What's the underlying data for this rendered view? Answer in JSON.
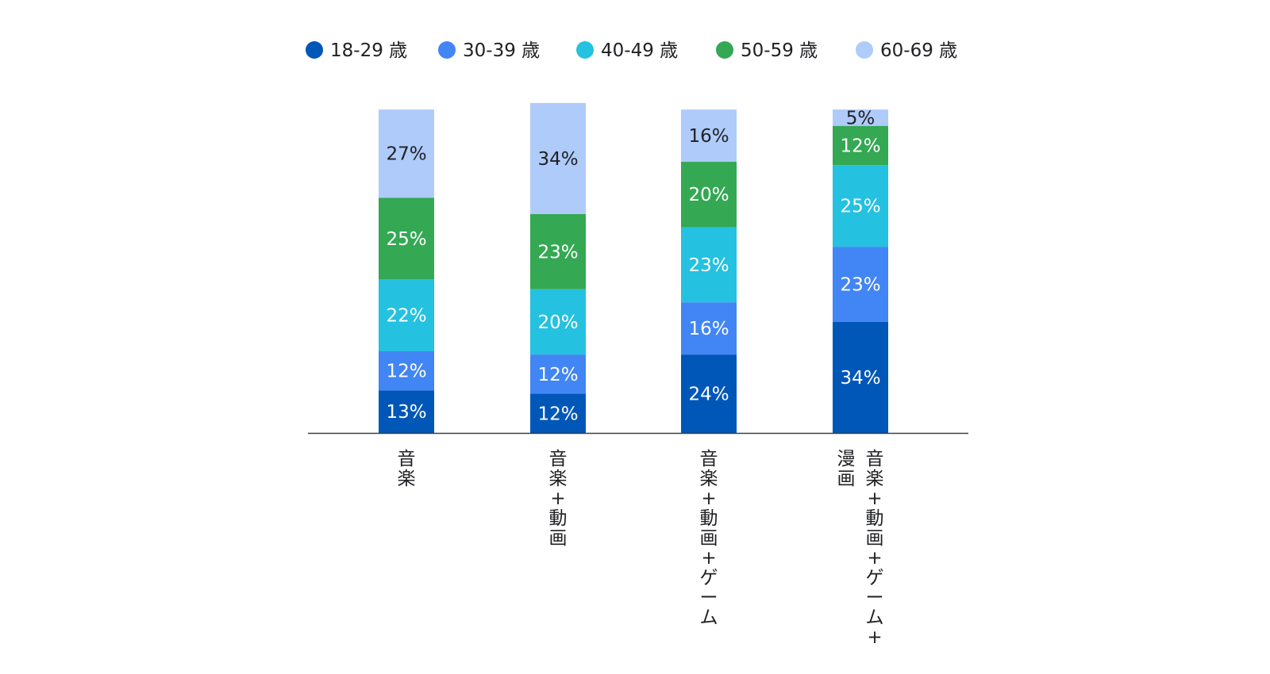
{
  "chart_data": {
    "type": "bar",
    "stacked": true,
    "legend_position": "top",
    "categories": [
      [
        "音楽"
      ],
      [
        "音楽+動画"
      ],
      [
        "音楽+動画+ゲーム"
      ],
      [
        "音楽+動画+ゲーム+",
        "漫画"
      ]
    ],
    "series": [
      {
        "name": "18-29 歳",
        "color": "#0057b8",
        "values": [
          13,
          12,
          24,
          34
        ],
        "labels": [
          "13%",
          "12%",
          "24%",
          "34%"
        ]
      },
      {
        "name": "30-39 歳",
        "color": "#4285f4",
        "values": [
          12,
          12,
          16,
          23
        ],
        "labels": [
          "12%",
          "12%",
          "16%",
          "23%"
        ]
      },
      {
        "name": "40-49 歳",
        "color": "#24c1e0",
        "values": [
          22,
          20,
          23,
          25
        ],
        "labels": [
          "22%",
          "20%",
          "23%",
          "25%"
        ]
      },
      {
        "name": "50-59 歳",
        "color": "#34a853",
        "values": [
          25,
          23,
          20,
          12
        ],
        "labels": [
          "25%",
          "23%",
          "20%",
          "12%"
        ]
      },
      {
        "name": "60-69 歳",
        "color": "#aecbfa",
        "values": [
          27,
          34,
          16,
          5
        ],
        "labels": [
          "27%",
          "34%",
          "16%",
          "5%"
        ]
      }
    ],
    "title": "",
    "xlabel": "",
    "ylabel": "",
    "ylim": [
      0,
      100
    ],
    "grid": false
  }
}
